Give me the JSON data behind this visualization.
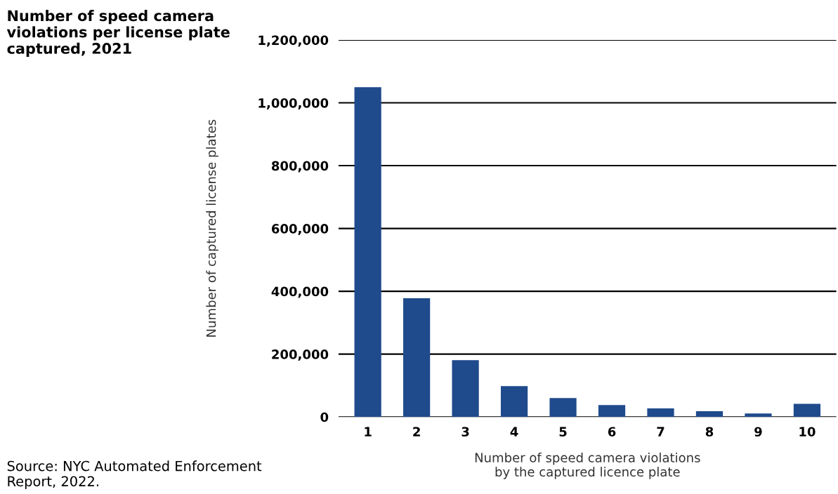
{
  "chart_data": {
    "type": "bar",
    "title": "Number of speed camera violations per license plate captured, 2021",
    "xlabel": "Number of speed camera violations\nby the captured licence plate",
    "ylabel": "Number of captured license plates",
    "categories": [
      "1",
      "2",
      "3",
      "4",
      "5",
      "6",
      "7",
      "8",
      "9",
      "10"
    ],
    "values": [
      1050000,
      378000,
      181000,
      98000,
      60000,
      38000,
      27000,
      18000,
      11000,
      42000
    ],
    "color": "#1f4a8c",
    "ylim": [
      0,
      1200000
    ],
    "yticks": [
      {
        "value": 0,
        "label": "0"
      },
      {
        "value": 200000,
        "label": "200,000"
      },
      {
        "value": 400000,
        "label": "400,000"
      },
      {
        "value": 600000,
        "label": "600,000"
      },
      {
        "value": 800000,
        "label": "800,000"
      },
      {
        "value": 1000000,
        "label": "1,000,000"
      },
      {
        "value": 1200000,
        "label": "1,200,000"
      }
    ],
    "grid": "y",
    "annotations": [
      "Source: NYC Automated Enforcement Report, 2022."
    ]
  }
}
